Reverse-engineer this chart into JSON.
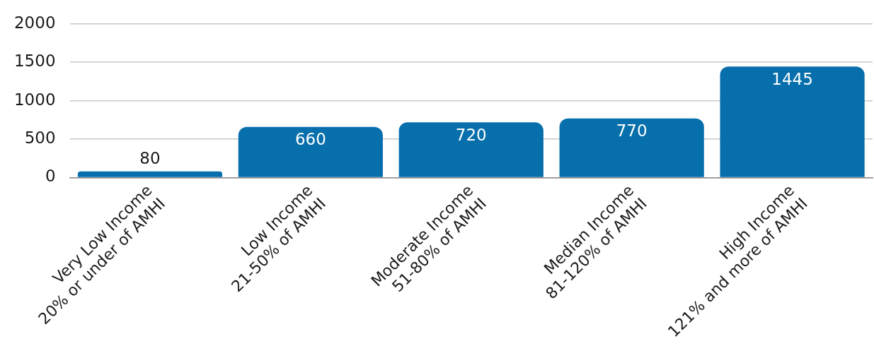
{
  "chart_data": {
    "type": "bar",
    "categories": [
      "Very Low Income\n20% or under of AMHI",
      "Low Income\n21-50% of AMHI",
      "Moderate Income\n51-80% of AMHI",
      "Median Income\n81-120% of AMHI",
      "High Income\n121% and more of AMHI"
    ],
    "values": [
      80,
      660,
      720,
      770,
      1445
    ],
    "color": "#066fac",
    "ylim": [
      0,
      2000
    ],
    "yticks": [
      0,
      500,
      1000,
      1500,
      2000
    ],
    "grid": "y",
    "data_labels": true
  }
}
